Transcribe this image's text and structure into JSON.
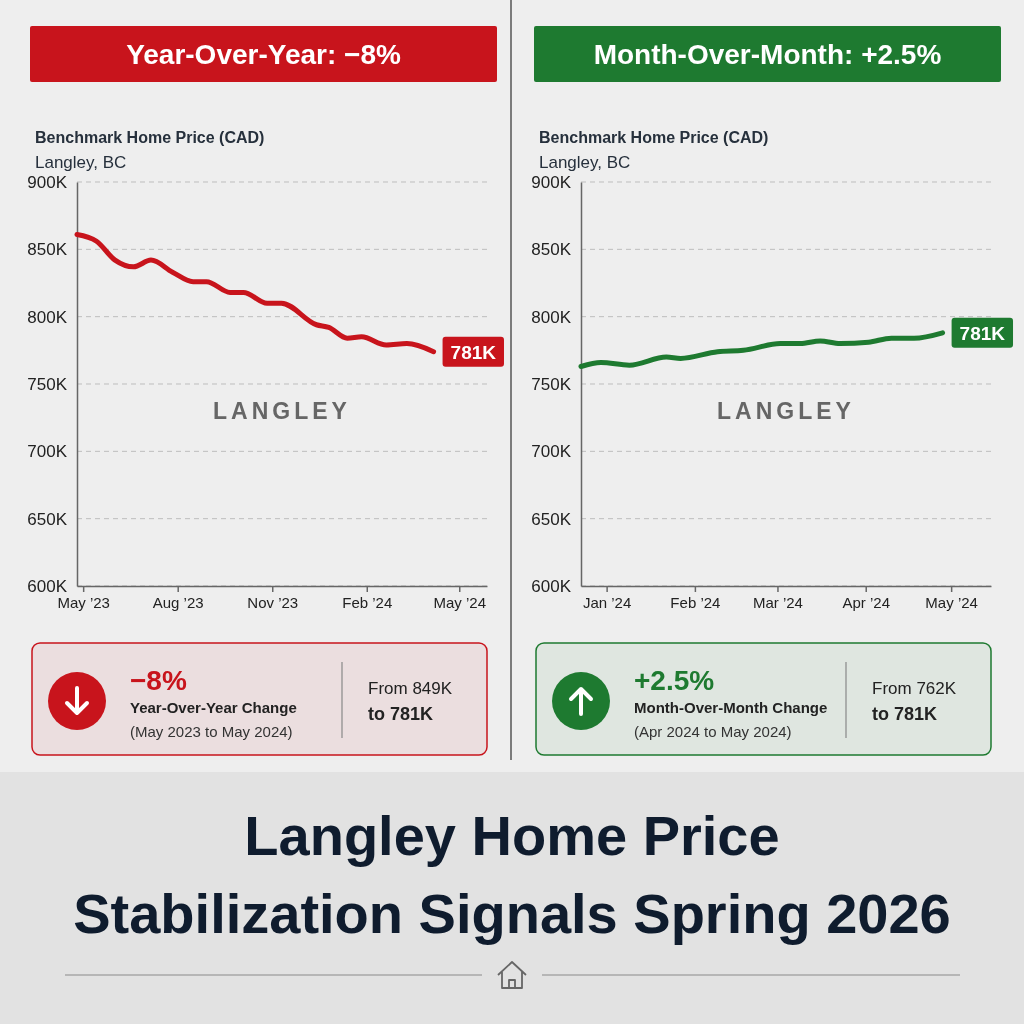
{
  "chart_data": [
    {
      "type": "line",
      "title": "Year-Over-Year: −8%",
      "subtitle": "Benchmark Home Price (CAD)",
      "x": [
        "2023-04-25",
        "2023-05-14",
        "2023-06-01",
        "2023-06-19",
        "2023-07-06",
        "2023-07-27",
        "2023-08-16",
        "2023-08-29",
        "2023-09-21",
        "2023-10-04",
        "2023-10-27",
        "2023-11-10",
        "2023-12-14",
        "2023-12-26",
        "2024-01-13",
        "2024-01-27",
        "2024-02-20",
        "2024-03-11",
        "2024-04-06"
      ],
      "series": [
        {
          "color": "#c8141c",
          "values": [
            861,
            856,
            842,
            837,
            842,
            833,
            826,
            826,
            818,
            818,
            810,
            810,
            794,
            792,
            784,
            785,
            779,
            780,
            774
          ]
        }
      ],
      "xlim": [
        "2023-04-25",
        "2024-05-28"
      ],
      "xticks": [
        {
          "value": "2023-05",
          "label": "May ’23"
        },
        {
          "value": "2023-08",
          "label": "Aug ’23"
        },
        {
          "value": "2023-11",
          "label": "Nov ’23"
        },
        {
          "value": "2024-02",
          "label": "Feb ’24"
        },
        {
          "value": "2024-05",
          "label": "May ’24"
        }
      ],
      "ylim": [
        600,
        900
      ],
      "yticks": [
        {
          "value": 600,
          "label": "600K"
        },
        {
          "value": 650,
          "label": "650K"
        },
        {
          "value": 700,
          "label": "700K"
        },
        {
          "value": 750,
          "label": "750K"
        },
        {
          "value": 800,
          "label": "800K"
        },
        {
          "value": 850,
          "label": "850K"
        },
        {
          "value": 900,
          "label": "900K"
        }
      ],
      "grid": "y",
      "annotations": [
        "Langley, BC",
        "LANGLEY",
        {
          "text": "781K",
          "x": "2024-04-06",
          "y": 774
        },
        "−8%",
        "Year-Over-Year Change",
        "(May 2023 to May 2024)",
        "From 849K",
        "to 781K"
      ]
    },
    {
      "type": "line",
      "title": "Month-Over-Month: +2.5%",
      "subtitle": "Benchmark Home Price (CAD)",
      "x": [
        "2023-12-23",
        "2023-12-30",
        "2024-01-09",
        "2024-01-22",
        "2024-01-27",
        "2024-02-09",
        "2024-02-18",
        "2024-03-02",
        "2024-03-09",
        "2024-03-16",
        "2024-03-23",
        "2024-04-02",
        "2024-04-10",
        "2024-04-18",
        "2024-04-28"
      ],
      "series": [
        {
          "color": "#1e7a30",
          "values": [
            763,
            766,
            764,
            770,
            769,
            774,
            775,
            780,
            780,
            782,
            780,
            781,
            784,
            784,
            788
          ]
        }
      ],
      "xlim": [
        "2023-12-23",
        "2024-05-15"
      ],
      "xticks": [
        {
          "value": "2024-01",
          "label": "Jan ’24"
        },
        {
          "value": "2024-02",
          "label": "Feb ’24"
        },
        {
          "value": "2024-03",
          "label": "Mar ’24"
        },
        {
          "value": "2024-04",
          "label": "Apr ’24"
        },
        {
          "value": "2024-05",
          "label": "May ’24"
        }
      ],
      "ylim": [
        600,
        900
      ],
      "yticks": [
        {
          "value": 600,
          "label": "600K"
        },
        {
          "value": 650,
          "label": "650K"
        },
        {
          "value": 700,
          "label": "700K"
        },
        {
          "value": 750,
          "label": "750K"
        },
        {
          "value": 800,
          "label": "800K"
        },
        {
          "value": 850,
          "label": "850K"
        },
        {
          "value": 900,
          "label": "900K"
        }
      ],
      "grid": "y",
      "annotations": [
        "Langley, BC",
        "LANGLEY",
        {
          "text": "781K",
          "x": "2024-04-28",
          "y": 788
        },
        "+2.5%",
        "Month-Over-Month Change",
        "(Apr 2024 to May 2024)",
        "From 762K",
        "to 781K"
      ]
    },
    {
      "type": "other",
      "title": "Langley Home Price\nStabilization Signals Spring 2026"
    }
  ]
}
